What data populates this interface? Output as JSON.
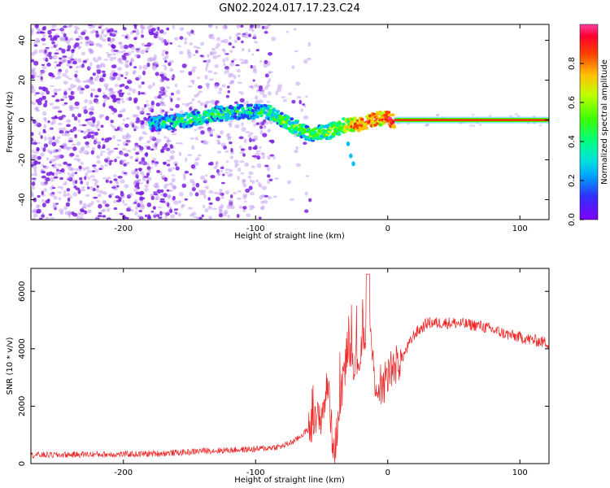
{
  "title": "GN02.2024.017.17.23.C24",
  "colors": {
    "snr_line": "#ee2222",
    "scatter_sparse": "#b98cf0",
    "scatter_dense": "#7a1ee0",
    "colormap": [
      "#8000ff",
      "#2040ff",
      "#00c0ff",
      "#00ff80",
      "#40ff00",
      "#c0ff00",
      "#ffc000",
      "#ff4000",
      "#ff0040",
      "#ff40a0"
    ]
  },
  "chart_data": [
    {
      "type": "heatmap",
      "xlabel": "Height of straight line (km)",
      "ylabel": "Frequency (Hz)",
      "xlim": [
        -270,
        122
      ],
      "ylim": [
        -50,
        48
      ],
      "xticks": [
        -200,
        -100,
        0,
        100
      ],
      "yticks": [
        -40,
        -20,
        0,
        20,
        40
      ],
      "grid": false,
      "colorbar": {
        "label": "Normalized spectral amplitude",
        "range": [
          0.0,
          1.0
        ],
        "ticks": [
          "0.0",
          "0.2",
          "0.4",
          "0.6",
          "0.8"
        ]
      },
      "ridge_track": [
        {
          "x": -180,
          "y": -2,
          "amp": 0.25
        },
        {
          "x": -150,
          "y": 0,
          "amp": 0.35
        },
        {
          "x": -130,
          "y": 3,
          "amp": 0.35
        },
        {
          "x": -110,
          "y": 4,
          "amp": 0.3
        },
        {
          "x": -90,
          "y": 4,
          "amp": 0.35
        },
        {
          "x": -75,
          "y": -2,
          "amp": 0.45
        },
        {
          "x": -60,
          "y": -7,
          "amp": 0.4
        },
        {
          "x": -45,
          "y": -6,
          "amp": 0.45
        },
        {
          "x": -35,
          "y": -3,
          "amp": 0.5
        },
        {
          "x": -20,
          "y": -2,
          "amp": 0.8
        },
        {
          "x": -5,
          "y": 1,
          "amp": 0.75
        },
        {
          "x": 5,
          "y": 0,
          "amp": 0.9
        },
        {
          "x": 50,
          "y": 0,
          "amp": 1.0
        },
        {
          "x": 120,
          "y": 0,
          "amp": 1.0
        }
      ],
      "branch_track": [
        {
          "x": -30,
          "y": -12
        },
        {
          "x": -28,
          "y": -18
        },
        {
          "x": -26,
          "y": -22
        }
      ]
    },
    {
      "type": "line",
      "xlabel": "Height of straight line (km)",
      "ylabel": "SNR (10 * v/v)",
      "xlim": [
        -270,
        122
      ],
      "ylim": [
        0,
        6800
      ],
      "xticks": [
        -200,
        -100,
        0,
        100
      ],
      "yticks": [
        0,
        2000,
        4000,
        6000
      ],
      "grid": false,
      "series": [
        {
          "x": [
            -270,
            -250,
            -230,
            -210,
            -190,
            -170,
            -150,
            -140,
            -130,
            -120,
            -100,
            -80,
            -70,
            -60,
            -55,
            -50,
            -45,
            -42,
            -40,
            -35,
            -30,
            -25,
            -20,
            -15,
            -10,
            -5,
            0,
            10,
            20,
            30,
            50,
            70,
            90,
            110,
            122
          ],
          "y": [
            300,
            300,
            320,
            320,
            330,
            360,
            400,
            450,
            450,
            470,
            500,
            600,
            800,
            1200,
            1400,
            1700,
            2800,
            900,
            500,
            2500,
            4200,
            3500,
            3800,
            5200,
            3000,
            2300,
            3200,
            3600,
            4500,
            4900,
            4900,
            4800,
            4500,
            4300,
            4200
          ]
        }
      ]
    }
  ]
}
